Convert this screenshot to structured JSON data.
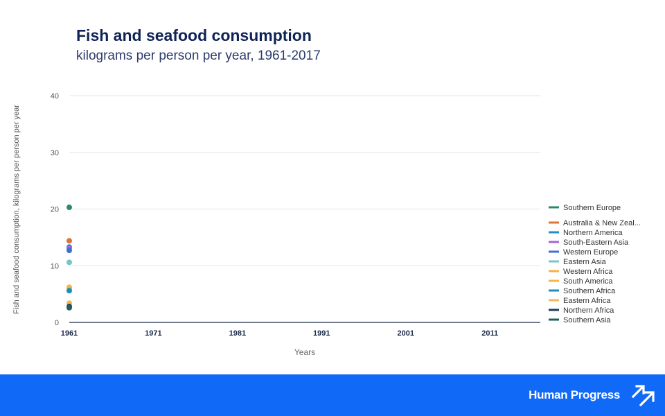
{
  "header": {
    "title": "Fish and seafood consumption",
    "subtitle": "kilograms per person per year, 1961-2017"
  },
  "footer": {
    "brand": "Human Progress",
    "logo_icon": "arrows-up-right-icon",
    "background": "#1169f7"
  },
  "chart_data": {
    "type": "scatter",
    "ylabel": "Fish and seafood consumption, kilograms per person per year",
    "xlabel": "Years",
    "ylim": [
      0,
      40
    ],
    "yticks": [
      0,
      10,
      20,
      30,
      40
    ],
    "xlim": [
      1961,
      2017
    ],
    "xticks": [
      1961,
      1971,
      1981,
      1991,
      2001,
      2011
    ],
    "grid": true,
    "legend_position": "right",
    "series": [
      {
        "name": "Southern Europe",
        "color": "#2a8a6f",
        "x": [
          1961
        ],
        "y": [
          20.3
        ]
      },
      {
        "name": "Australia & New Zeal...",
        "color": "#e07436",
        "x": [
          1961
        ],
        "y": [
          14.4
        ]
      },
      {
        "name": "Northern America",
        "color": "#1f8ec9",
        "x": [
          1961
        ],
        "y": [
          13.3
        ]
      },
      {
        "name": "South-Eastern Asia",
        "color": "#a464d8",
        "x": [
          1961
        ],
        "y": [
          13.1
        ]
      },
      {
        "name": "Western Europe",
        "color": "#3f6fd0",
        "x": [
          1961
        ],
        "y": [
          12.7
        ]
      },
      {
        "name": "Eastern Asia",
        "color": "#74c6c8",
        "x": [
          1961
        ],
        "y": [
          10.6
        ]
      },
      {
        "name": "Western Africa",
        "color": "#f5b14a",
        "x": [
          1961
        ],
        "y": [
          6.2
        ]
      },
      {
        "name": "South America",
        "color": "#f4b548",
        "x": [
          1961
        ],
        "y": [
          6.0
        ]
      },
      {
        "name": "Southern Africa",
        "color": "#1c8fb9",
        "x": [
          1961
        ],
        "y": [
          5.6
        ]
      },
      {
        "name": "Eastern Africa",
        "color": "#f2b855",
        "x": [
          1961
        ],
        "y": [
          3.4
        ]
      },
      {
        "name": "Northern Africa",
        "color": "#1e3a5f",
        "x": [
          1961
        ],
        "y": [
          2.8
        ]
      },
      {
        "name": "Southern Asia",
        "color": "#1f5f5f",
        "x": [
          1961
        ],
        "y": [
          2.6
        ]
      }
    ]
  }
}
